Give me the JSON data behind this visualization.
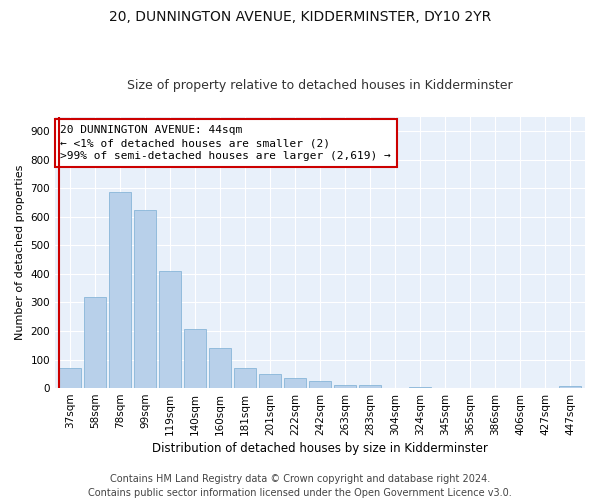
{
  "title": "20, DUNNINGTON AVENUE, KIDDERMINSTER, DY10 2YR",
  "subtitle": "Size of property relative to detached houses in Kidderminster",
  "xlabel": "Distribution of detached houses by size in Kidderminster",
  "ylabel": "Number of detached properties",
  "categories": [
    "37sqm",
    "58sqm",
    "78sqm",
    "99sqm",
    "119sqm",
    "140sqm",
    "160sqm",
    "181sqm",
    "201sqm",
    "222sqm",
    "242sqm",
    "263sqm",
    "283sqm",
    "304sqm",
    "324sqm",
    "345sqm",
    "365sqm",
    "386sqm",
    "406sqm",
    "427sqm",
    "447sqm"
  ],
  "values": [
    72,
    320,
    685,
    625,
    410,
    208,
    140,
    72,
    48,
    35,
    25,
    10,
    10,
    0,
    5,
    0,
    0,
    0,
    0,
    0,
    8
  ],
  "bar_color": "#b8d0ea",
  "bar_edge_color": "#7aadd4",
  "annotation_line1": "20 DUNNINGTON AVENUE: 44sqm",
  "annotation_line2": "← <1% of detached houses are smaller (2)",
  "annotation_line3": ">99% of semi-detached houses are larger (2,619) →",
  "annotation_box_color": "#ffffff",
  "annotation_box_edge_color": "#cc0000",
  "highlight_bar_index": 0,
  "highlight_bar_edge_color": "#cc0000",
  "red_line_color": "#cc0000",
  "background_color": "#e8f0fa",
  "fig_background_color": "#ffffff",
  "footer_line1": "Contains HM Land Registry data © Crown copyright and database right 2024.",
  "footer_line2": "Contains public sector information licensed under the Open Government Licence v3.0.",
  "ylim": [
    0,
    950
  ],
  "yticks": [
    0,
    100,
    200,
    300,
    400,
    500,
    600,
    700,
    800,
    900
  ],
  "title_fontsize": 10,
  "subtitle_fontsize": 9,
  "xlabel_fontsize": 8.5,
  "ylabel_fontsize": 8,
  "tick_fontsize": 7.5,
  "annotation_fontsize": 8,
  "footer_fontsize": 7
}
